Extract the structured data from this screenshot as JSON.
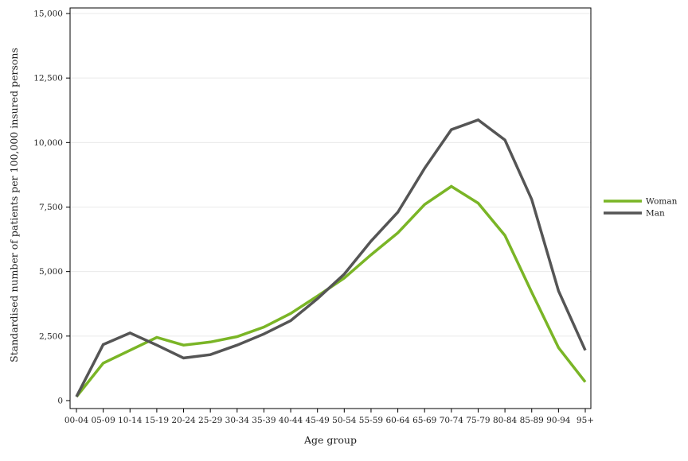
{
  "chart_data": {
    "type": "line",
    "title": "",
    "xlabel": "Age group",
    "ylabel": "Standardised number of patients per 100,000 insured persons",
    "categories": [
      "00-04",
      "05-09",
      "10-14",
      "15-19",
      "20-24",
      "25-29",
      "30-34",
      "35-39",
      "40-44",
      "45-49",
      "50-54",
      "55-59",
      "60-64",
      "65-69",
      "70-74",
      "75-79",
      "80-84",
      "85-89",
      "90-94",
      "95+"
    ],
    "ylim": [
      0,
      15000
    ],
    "yticks": [
      0,
      2500,
      5000,
      7500,
      10000,
      12500,
      15000
    ],
    "ytick_labels": [
      "0",
      "2,500",
      "5,000",
      "7,500",
      "10,000",
      "12,500",
      "15,000"
    ],
    "grid": true,
    "legend_position": "right",
    "series": [
      {
        "name": "Woman",
        "color": "#7ab526",
        "values": [
          150,
          1450,
          1950,
          2450,
          2150,
          2270,
          2480,
          2850,
          3380,
          4050,
          4750,
          5650,
          6500,
          7600,
          8300,
          7650,
          6400,
          4200,
          2050,
          720
        ]
      },
      {
        "name": "Man",
        "color": "#555555",
        "values": [
          150,
          2170,
          2620,
          2150,
          1650,
          1780,
          2150,
          2580,
          3100,
          3950,
          4900,
          6180,
          7300,
          9000,
          10500,
          10880,
          10100,
          7800,
          4250,
          1950
        ]
      }
    ]
  }
}
